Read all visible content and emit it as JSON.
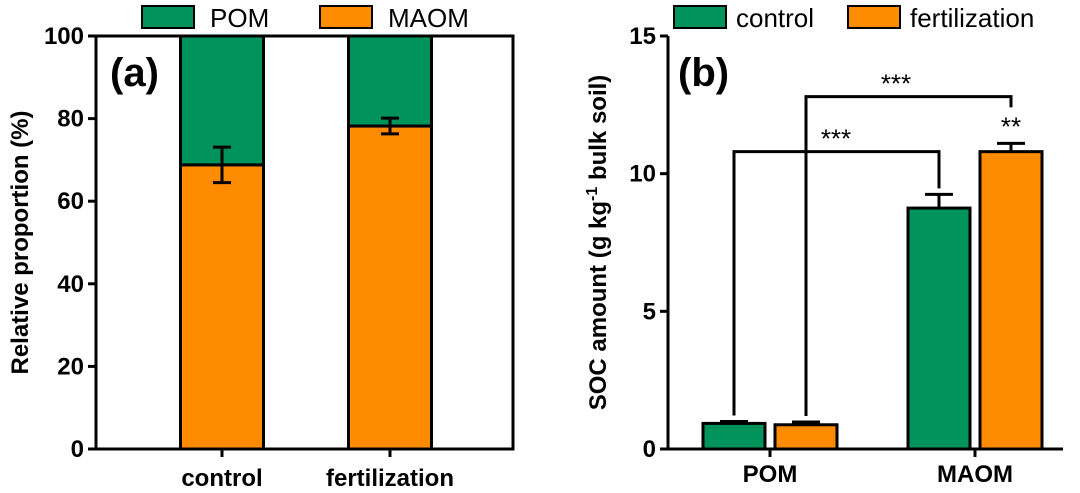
{
  "chart_data": [
    {
      "type": "bar",
      "stacked": true,
      "panel_label": "(a)",
      "categories": [
        "control",
        "fertilization"
      ],
      "series": [
        {
          "name": "MAOM",
          "color": "#FF8C00",
          "values": [
            68.8,
            78.2
          ],
          "error": [
            4.3,
            1.9
          ]
        },
        {
          "name": "POM",
          "color": "#00935C",
          "values": [
            31.2,
            21.8
          ]
        }
      ],
      "legend_order": [
        "POM",
        "MAOM"
      ],
      "legend_position": "top",
      "ylabel": "Relative proportion (%)",
      "ylim": [
        0,
        100
      ],
      "yticks": [
        "0",
        "20",
        "40",
        "60",
        "80",
        "100"
      ]
    },
    {
      "type": "bar",
      "panel_label": "(b)",
      "categories": [
        "POM",
        "MAOM"
      ],
      "series": [
        {
          "name": "control",
          "color": "#00935C",
          "values": [
            0.93,
            8.75
          ],
          "error": [
            0.07,
            0.5
          ]
        },
        {
          "name": "fertilization",
          "color": "#FF8C00",
          "values": [
            0.88,
            10.8
          ],
          "error": [
            0.1,
            0.3
          ]
        }
      ],
      "legend_position": "top",
      "ylabel_prefix": "SOC amount (g kg",
      "ylabel_sup": "-1",
      "ylabel_suffix": " bulk soil)",
      "ylim": [
        0,
        15
      ],
      "yticks": [
        "0",
        "5",
        "10",
        "15"
      ],
      "annotations": [
        {
          "text": "***",
          "between": "control POM – control MAOM"
        },
        {
          "text": "***",
          "between": "fertilization POM – fertilization MAOM"
        },
        {
          "text": "**",
          "over": "fertilization MAOM"
        }
      ]
    }
  ]
}
